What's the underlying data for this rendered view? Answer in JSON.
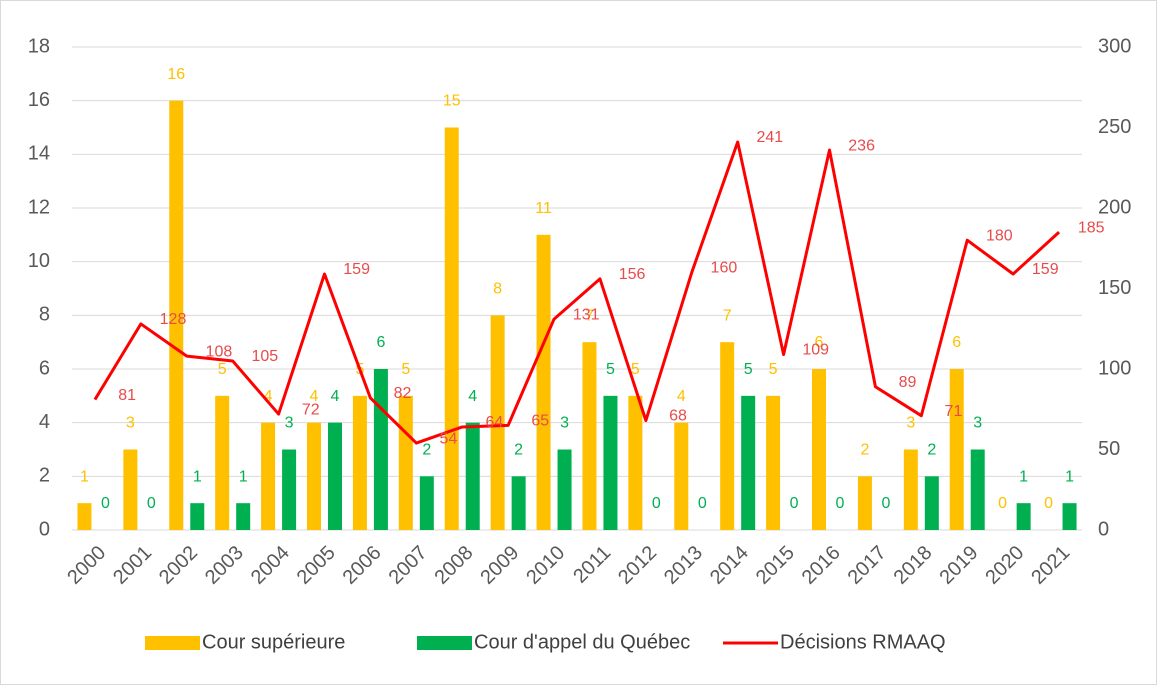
{
  "chart_data": {
    "type": "bar",
    "categories": [
      "2000",
      "2001",
      "2002",
      "2003",
      "2004",
      "2005",
      "2006",
      "2007",
      "2008",
      "2009",
      "2010",
      "2011",
      "2012",
      "2013",
      "2014",
      "2015",
      "2016",
      "2017",
      "2018",
      "2019",
      "2020",
      "2021"
    ],
    "series": [
      {
        "name": "Cour supérieure",
        "type": "bar",
        "color": "#FFC000",
        "values": [
          1,
          3,
          16,
          5,
          4,
          4,
          5,
          5,
          15,
          8,
          11,
          7,
          5,
          4,
          7,
          5,
          6,
          2,
          3,
          6,
          0,
          0
        ]
      },
      {
        "name": "Cour d'appel du Québec",
        "type": "bar",
        "color": "#00B050",
        "values": [
          0,
          0,
          1,
          1,
          3,
          4,
          6,
          2,
          4,
          2,
          3,
          5,
          0,
          0,
          5,
          0,
          0,
          0,
          2,
          3,
          1,
          1
        ]
      },
      {
        "name": "Décisions RMAAQ",
        "type": "line",
        "axis": "y2",
        "color": "#FF0000",
        "values": [
          81,
          128,
          108,
          105,
          72,
          159,
          82,
          54,
          64,
          65,
          131,
          156,
          68,
          160,
          241,
          109,
          236,
          89,
          71,
          180,
          159,
          185
        ]
      }
    ],
    "ylim": [
      0,
      18
    ],
    "yticks": [
      0,
      2,
      4,
      6,
      8,
      10,
      12,
      14,
      16,
      18
    ],
    "y2lim": [
      0,
      300
    ],
    "y2ticks": [
      0,
      50,
      100,
      150,
      200,
      250,
      300
    ],
    "grid": true,
    "legend": "bottom"
  }
}
